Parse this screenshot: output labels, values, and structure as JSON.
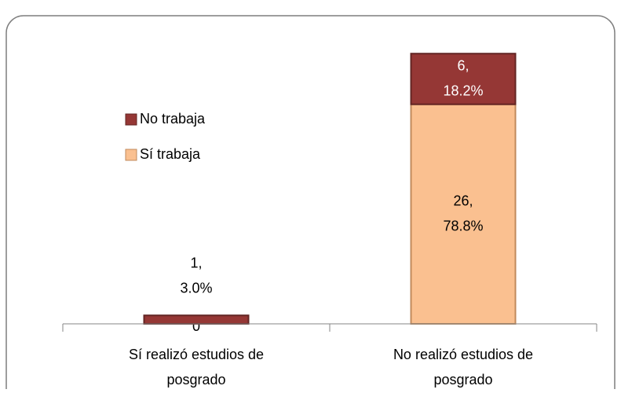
{
  "chart_data": {
    "type": "bar",
    "stacked": true,
    "categories": [
      "Sí realizó estudios de posgrado",
      "No realizó estudios de posgrado"
    ],
    "series": [
      {
        "name": "Sí trabaja",
        "color": "#fac090",
        "values": [
          0,
          26
        ],
        "value_labels": [
          "0",
          "26, 78.8%"
        ]
      },
      {
        "name": "No trabaja",
        "color": "#953735",
        "values": [
          1,
          6
        ],
        "value_labels": [
          "1, 3.0%",
          "6, 18.2%"
        ]
      }
    ],
    "ylim": [
      0,
      35
    ]
  }
}
